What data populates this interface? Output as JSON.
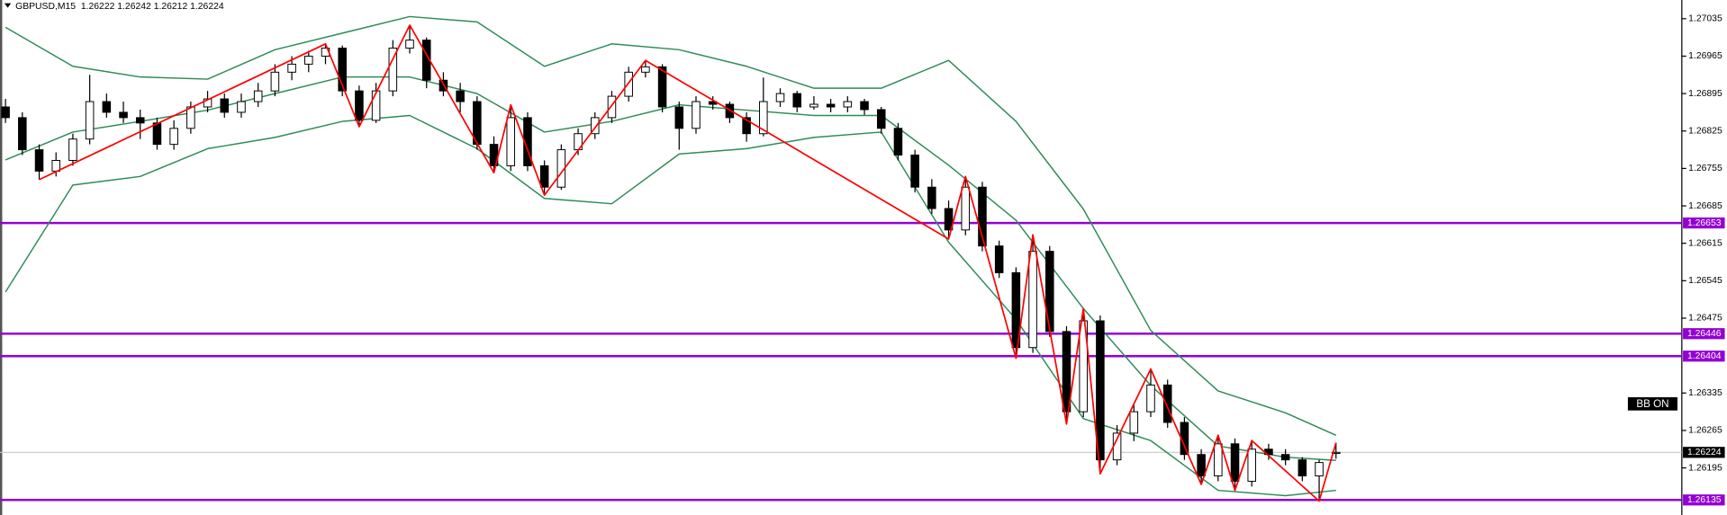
{
  "chart_data": {
    "type": "candlestick",
    "title": "GBPUSD,M15  1.26222 1.26242 1.26212 1.26224",
    "ylim": [
      1.26111,
      1.2707
    ],
    "yticks": [
      1.27035,
      1.26965,
      1.26895,
      1.26825,
      1.26755,
      1.26685,
      1.26615,
      1.26545,
      1.26475,
      1.26335,
      1.26265,
      1.26195
    ],
    "up_color": "#ffffff",
    "down_color": "#000000",
    "candles": [
      [
        1.2687,
        1.26885,
        1.2684,
        1.2685
      ],
      [
        1.2685,
        1.2686,
        1.2678,
        1.2679
      ],
      [
        1.2679,
        1.268,
        1.26734,
        1.2675
      ],
      [
        1.2675,
        1.26785,
        1.2674,
        1.2677
      ],
      [
        1.2677,
        1.2682,
        1.2676,
        1.2681
      ],
      [
        1.2681,
        1.2693,
        1.268,
        1.2688
      ],
      [
        1.2688,
        1.26895,
        1.2685,
        1.2686
      ],
      [
        1.2686,
        1.2688,
        1.2684,
        1.2685
      ],
      [
        1.2685,
        1.26865,
        1.2681,
        1.2684
      ],
      [
        1.2684,
        1.2685,
        1.2679,
        1.268
      ],
      [
        1.268,
        1.26845,
        1.2679,
        1.2683
      ],
      [
        1.2683,
        1.2688,
        1.2682,
        1.2687
      ],
      [
        1.2687,
        1.269,
        1.2686,
        1.26885
      ],
      [
        1.26885,
        1.26895,
        1.2685,
        1.2686
      ],
      [
        1.2686,
        1.26895,
        1.2685,
        1.2688
      ],
      [
        1.2688,
        1.26915,
        1.2687,
        1.269
      ],
      [
        1.269,
        1.2695,
        1.2689,
        1.26935
      ],
      [
        1.26935,
        1.26965,
        1.2692,
        1.2695
      ],
      [
        1.2695,
        1.26975,
        1.26935,
        1.26965
      ],
      [
        1.26965,
        1.26988,
        1.2695,
        1.2698
      ],
      [
        1.2698,
        1.26985,
        1.2689,
        1.269
      ],
      [
        1.269,
        1.2691,
        1.26833,
        1.26845
      ],
      [
        1.26845,
        1.26915,
        1.2684,
        1.269
      ],
      [
        1.269,
        1.26995,
        1.2689,
        1.2698
      ],
      [
        1.2698,
        1.27023,
        1.2697,
        1.26995
      ],
      [
        1.26995,
        1.27,
        1.26905,
        1.2692
      ],
      [
        1.2692,
        1.26935,
        1.2689,
        1.269
      ],
      [
        1.269,
        1.26915,
        1.2686,
        1.2688
      ],
      [
        1.2688,
        1.2689,
        1.2679,
        1.268
      ],
      [
        1.268,
        1.26815,
        1.26747,
        1.2676
      ],
      [
        1.2676,
        1.26874,
        1.2675,
        1.2685
      ],
      [
        1.2685,
        1.2686,
        1.2675,
        1.2676
      ],
      [
        1.2676,
        1.2677,
        1.26705,
        1.2672
      ],
      [
        1.2672,
        1.268,
        1.26715,
        1.2679
      ],
      [
        1.2679,
        1.2683,
        1.2678,
        1.2682
      ],
      [
        1.2682,
        1.2686,
        1.2681,
        1.2685
      ],
      [
        1.2685,
        1.269,
        1.2684,
        1.2689
      ],
      [
        1.2689,
        1.26945,
        1.2688,
        1.26935
      ],
      [
        1.26935,
        1.26957,
        1.26925,
        1.26945
      ],
      [
        1.26945,
        1.2695,
        1.2686,
        1.2687
      ],
      [
        1.2687,
        1.2688,
        1.2679,
        1.2683
      ],
      [
        1.2683,
        1.2689,
        1.2682,
        1.2688
      ],
      [
        1.2688,
        1.2689,
        1.26865,
        1.26875
      ],
      [
        1.26875,
        1.2688,
        1.2684,
        1.2685
      ],
      [
        1.2685,
        1.2686,
        1.26805,
        1.2682
      ],
      [
        1.2682,
        1.26925,
        1.26815,
        1.2688
      ],
      [
        1.2688,
        1.26905,
        1.2687,
        1.26895
      ],
      [
        1.26895,
        1.269,
        1.2686,
        1.2687
      ],
      [
        1.2687,
        1.2689,
        1.26865,
        1.26875
      ],
      [
        1.26875,
        1.26885,
        1.2686,
        1.2687
      ],
      [
        1.2687,
        1.2689,
        1.2686,
        1.2688
      ],
      [
        1.2688,
        1.26885,
        1.26855,
        1.26865
      ],
      [
        1.26865,
        1.2687,
        1.2682,
        1.2683
      ],
      [
        1.2683,
        1.2684,
        1.2677,
        1.2678
      ],
      [
        1.2678,
        1.2679,
        1.2671,
        1.2672
      ],
      [
        1.2672,
        1.26735,
        1.2667,
        1.2668
      ],
      [
        1.2668,
        1.26695,
        1.26623,
        1.2664
      ],
      [
        1.2664,
        1.2674,
        1.2663,
        1.2672
      ],
      [
        1.2672,
        1.2673,
        1.266,
        1.2661
      ],
      [
        1.2661,
        1.2662,
        1.2655,
        1.2656
      ],
      [
        1.2656,
        1.2657,
        1.264,
        1.2642
      ],
      [
        1.2642,
        1.26631,
        1.2641,
        1.266
      ],
      [
        1.266,
        1.2661,
        1.2644,
        1.2645
      ],
      [
        1.2645,
        1.2646,
        1.26277,
        1.263
      ],
      [
        1.263,
        1.26493,
        1.2629,
        1.2647
      ],
      [
        1.2647,
        1.2648,
        1.26184,
        1.2621
      ],
      [
        1.2621,
        1.26275,
        1.262,
        1.2626
      ],
      [
        1.2626,
        1.26315,
        1.26245,
        1.263
      ],
      [
        1.263,
        1.2638,
        1.2629,
        1.2635
      ],
      [
        1.2635,
        1.2636,
        1.2627,
        1.2628
      ],
      [
        1.2628,
        1.2629,
        1.2621,
        1.2622
      ],
      [
        1.2622,
        1.2623,
        1.26164,
        1.2618
      ],
      [
        1.2618,
        1.26256,
        1.2617,
        1.2624
      ],
      [
        1.2624,
        1.2625,
        1.26153,
        1.2617
      ],
      [
        1.2617,
        1.26246,
        1.2616,
        1.2623
      ],
      [
        1.2623,
        1.2624,
        1.2621,
        1.2622
      ],
      [
        1.2622,
        1.2623,
        1.262,
        1.2621
      ],
      [
        1.2621,
        1.26215,
        1.2617,
        1.2618
      ],
      [
        1.2618,
        1.2621,
        1.26133,
        1.26205
      ],
      [
        1.26222,
        1.26242,
        1.26212,
        1.26224
      ]
    ],
    "bollinger": {
      "color": "#2e8b57",
      "x": [
        0,
        4,
        8,
        12,
        16,
        20,
        24,
        28,
        32,
        36,
        40,
        44,
        48,
        52,
        56,
        60,
        64,
        68,
        72,
        76,
        79
      ],
      "upper": [
        1.27019,
        1.26946,
        1.26926,
        1.26922,
        1.26977,
        1.27008,
        1.27039,
        1.27029,
        1.26946,
        1.26988,
        1.26977,
        1.26946,
        1.26905,
        1.26905,
        1.26957,
        1.26843,
        1.26679,
        1.26452,
        1.26339,
        1.26298,
        1.26256
      ],
      "middle": [
        1.26771,
        1.26823,
        1.26843,
        1.26864,
        1.26895,
        1.26926,
        1.26926,
        1.26895,
        1.26823,
        1.26843,
        1.26874,
        1.26864,
        1.26854,
        1.26854,
        1.26761,
        1.26658,
        1.26493,
        1.26349,
        1.26236,
        1.26215,
        1.26209
      ],
      "lower": [
        1.26524,
        1.26724,
        1.2674,
        1.26792,
        1.26813,
        1.26843,
        1.26854,
        1.26792,
        1.26699,
        1.26689,
        1.26782,
        1.26792,
        1.26813,
        1.26823,
        1.26617,
        1.26473,
        1.26287,
        1.26246,
        1.26153,
        1.26143,
        1.26153
      ]
    },
    "zigzag": {
      "color": "#ff0000",
      "x": [
        2,
        19,
        21,
        24,
        29,
        30,
        32,
        38,
        56,
        57,
        60,
        61,
        63,
        64,
        65,
        68,
        71,
        72,
        73,
        74,
        78,
        79
      ],
      "values": [
        1.26734,
        1.26988,
        1.26833,
        1.27023,
        1.26747,
        1.26874,
        1.26705,
        1.26957,
        1.26623,
        1.2674,
        1.264,
        1.26631,
        1.26277,
        1.26493,
        1.26184,
        1.2638,
        1.26164,
        1.26256,
        1.26153,
        1.26246,
        1.26133,
        1.26242
      ]
    },
    "levels": {
      "color": "#9400d3",
      "values": [
        1.26653,
        1.26446,
        1.26404,
        1.26135
      ]
    },
    "current_price": 1.26224,
    "button": "BB ON"
  }
}
